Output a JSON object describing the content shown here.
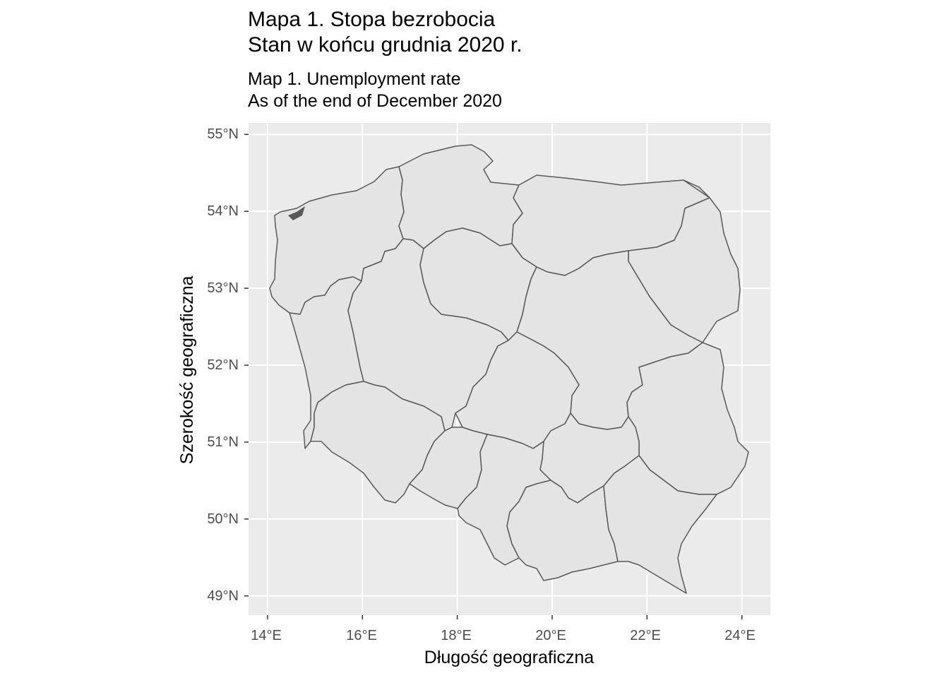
{
  "title": {
    "line1": "Mapa 1. Stopa bezrobocia",
    "line2": "Stan w końcu grudnia 2020 r."
  },
  "subtitle": {
    "line1": "Map 1. Unemployment rate",
    "line2": "As of the end of December 2020"
  },
  "axes": {
    "xlabel": "Długość geograficzna",
    "ylabel": "Szerokość geograficzna",
    "x_ticks": [
      "14°E",
      "16°E",
      "18°E",
      "20°E",
      "22°E",
      "24°E"
    ],
    "y_ticks": [
      "55°N",
      "54°N",
      "53°N",
      "52°N",
      "51°N",
      "50°N",
      "49°N"
    ]
  },
  "colors": {
    "panel_background": "#ebebeb",
    "gridline": "#ffffff",
    "region_fill": "#e4e4e4",
    "region_stroke": "#595959"
  },
  "chart_data": {
    "type": "choropleth-map",
    "x_range": [
      13.6,
      24.6
    ],
    "y_range": [
      48.75,
      55.15
    ],
    "x_tick_values": [
      14,
      16,
      18,
      20,
      22,
      24
    ],
    "y_tick_values": [
      55,
      54,
      53,
      52,
      51,
      50,
      49
    ],
    "grid": true
  }
}
